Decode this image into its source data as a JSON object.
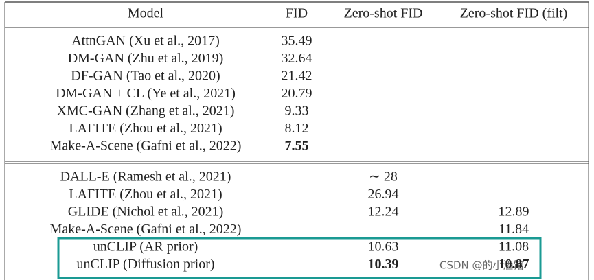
{
  "table": {
    "header": [
      "Model",
      "FID",
      "Zero-shot FID",
      "Zero-shot FID (filt)"
    ],
    "groups": [
      {
        "rows": [
          [
            "AttnGAN (Xu et al., 2017)",
            "35.49",
            null,
            null
          ],
          [
            "DM-GAN (Zhu et al., 2019)",
            "32.64",
            null,
            null
          ],
          [
            "DF-GAN (Tao et al., 2020)",
            "21.42",
            null,
            null
          ],
          [
            "DM-GAN + CL (Ye et al., 2021)",
            "20.79",
            null,
            null
          ],
          [
            "XMC-GAN (Zhang et al., 2021)",
            "9.33",
            null,
            null
          ],
          [
            "LAFITE (Zhou et al., 2021)",
            "8.12",
            null,
            null
          ],
          [
            "Make-A-Scene (Gafni et al., 2022)",
            {
              "text": "7.55",
              "bold": true
            },
            null,
            null
          ]
        ]
      },
      {
        "rows": [
          [
            "DALL-E (Ramesh et al., 2021)",
            null,
            "∼ 28",
            null
          ],
          [
            "LAFITE (Zhou et al., 2021)",
            null,
            "26.94",
            null
          ],
          [
            "GLIDE (Nichol et al., 2021)",
            null,
            "12.24",
            "12.89"
          ],
          [
            "Make-A-Scene (Gafni et al., 2022)",
            null,
            null,
            "11.84"
          ],
          [
            "unCLIP (AR prior)",
            null,
            "10.63",
            "11.08"
          ],
          [
            "unCLIP (Diffusion prior)",
            null,
            {
              "text": "10.39",
              "bold": true
            },
            {
              "text": "10.87",
              "bold": true
            }
          ]
        ]
      }
    ]
  },
  "watermark": "CSDN @的小酒馆"
}
